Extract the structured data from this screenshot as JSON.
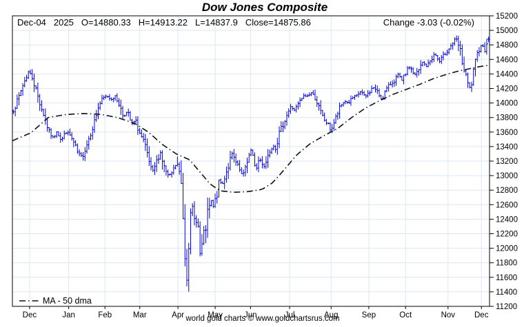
{
  "title": "Dow Jones Composite",
  "header": {
    "parts": [
      "Dec-04",
      "2025",
      "O=14880.33",
      "H=14913.22",
      "L=14837.9",
      "Close=14875.86"
    ],
    "change": "Change -3.03 (-0.02%)"
  },
  "legend": {
    "ma_label": "MA - 50 dma"
  },
  "footer": "world gold charts © www.goldchartsrus.com",
  "colors": {
    "title": "#0000ee",
    "bar": "#0000dd",
    "ma": "#111111",
    "grid": "#dbe7f4",
    "frame": "#000000"
  },
  "chart_data": {
    "type": "ohlc-bar",
    "title": "Dow Jones Composite",
    "y_axis": {
      "min": 11200,
      "max": 15200,
      "step": 200,
      "side": "right"
    },
    "x_axis": {
      "note": "month-start ticks, Dec 2024 through Dec 2025",
      "months": [
        {
          "label": "Dec",
          "t": 0.036
        },
        {
          "label": "Jan",
          "t": 0.118
        },
        {
          "label": "Feb",
          "t": 0.194
        },
        {
          "label": "Mar",
          "t": 0.267
        },
        {
          "label": "Apr",
          "t": 0.347
        },
        {
          "label": "May",
          "t": 0.425
        },
        {
          "label": "Jun",
          "t": 0.499
        },
        {
          "label": "Jul",
          "t": 0.581
        },
        {
          "label": "Aug",
          "t": 0.668
        },
        {
          "label": "Sep",
          "t": 0.747
        },
        {
          "label": "Oct",
          "t": 0.824
        },
        {
          "label": "Nov",
          "t": 0.913
        },
        {
          "label": "Dec",
          "t": 0.983
        }
      ]
    },
    "grid": {
      "horizontal": true,
      "vertical": true
    },
    "last_bar": {
      "date": "Dec-04 2025",
      "open": 14880.33,
      "high": 14913.22,
      "low": 14837.9,
      "close": 14875.86,
      "change": -3.03,
      "change_pct": -0.02
    },
    "price_keypoints": [
      [
        0.0,
        13900
      ],
      [
        0.01,
        14050
      ],
      [
        0.02,
        14250
      ],
      [
        0.032,
        14430
      ],
      [
        0.04,
        14350
      ],
      [
        0.049,
        14150
      ],
      [
        0.058,
        13950
      ],
      [
        0.066,
        13800
      ],
      [
        0.075,
        13600
      ],
      [
        0.084,
        13520
      ],
      [
        0.092,
        13620
      ],
      [
        0.101,
        13480
      ],
      [
        0.11,
        13600
      ],
      [
        0.118,
        13570
      ],
      [
        0.127,
        13450
      ],
      [
        0.136,
        13300
      ],
      [
        0.145,
        13260
      ],
      [
        0.153,
        13400
      ],
      [
        0.162,
        13580
      ],
      [
        0.171,
        13750
      ],
      [
        0.179,
        13950
      ],
      [
        0.188,
        14060
      ],
      [
        0.197,
        14100
      ],
      [
        0.205,
        14050
      ],
      [
        0.214,
        14090
      ],
      [
        0.223,
        13980
      ],
      [
        0.231,
        13820
      ],
      [
        0.24,
        13880
      ],
      [
        0.249,
        13700
      ],
      [
        0.257,
        13760
      ],
      [
        0.266,
        13580
      ],
      [
        0.275,
        13450
      ],
      [
        0.283,
        13250
      ],
      [
        0.292,
        13030
      ],
      [
        0.301,
        13180
      ],
      [
        0.309,
        13330
      ],
      [
        0.318,
        13100
      ],
      [
        0.327,
        12980
      ],
      [
        0.335,
        13050
      ],
      [
        0.344,
        13180
      ],
      [
        0.353,
        12900
      ],
      [
        0.358,
        12350
      ],
      [
        0.364,
        11500
      ],
      [
        0.37,
        12200
      ],
      [
        0.376,
        12600
      ],
      [
        0.382,
        12350
      ],
      [
        0.387,
        12450
      ],
      [
        0.393,
        11900
      ],
      [
        0.399,
        12100
      ],
      [
        0.405,
        12300
      ],
      [
        0.41,
        12500
      ],
      [
        0.416,
        12650
      ],
      [
        0.422,
        12550
      ],
      [
        0.428,
        12750
      ],
      [
        0.434,
        12950
      ],
      [
        0.439,
        12850
      ],
      [
        0.445,
        13000
      ],
      [
        0.451,
        13100
      ],
      [
        0.46,
        13300
      ],
      [
        0.468,
        13180
      ],
      [
        0.477,
        13060
      ],
      [
        0.483,
        12980
      ],
      [
        0.488,
        13120
      ],
      [
        0.494,
        13250
      ],
      [
        0.5,
        13340
      ],
      [
        0.506,
        13200
      ],
      [
        0.512,
        13100
      ],
      [
        0.517,
        13240
      ],
      [
        0.523,
        13180
      ],
      [
        0.529,
        13120
      ],
      [
        0.535,
        13270
      ],
      [
        0.54,
        13350
      ],
      [
        0.546,
        13420
      ],
      [
        0.552,
        13380
      ],
      [
        0.558,
        13550
      ],
      [
        0.567,
        13700
      ],
      [
        0.575,
        13830
      ],
      [
        0.584,
        13950
      ],
      [
        0.592,
        13900
      ],
      [
        0.601,
        14000
      ],
      [
        0.61,
        14090
      ],
      [
        0.619,
        14100
      ],
      [
        0.627,
        14140
      ],
      [
        0.636,
        14060
      ],
      [
        0.645,
        13900
      ],
      [
        0.653,
        13780
      ],
      [
        0.662,
        13700
      ],
      [
        0.668,
        13620
      ],
      [
        0.673,
        13700
      ],
      [
        0.679,
        13800
      ],
      [
        0.688,
        13950
      ],
      [
        0.697,
        14030
      ],
      [
        0.705,
        14000
      ],
      [
        0.714,
        14070
      ],
      [
        0.723,
        14100
      ],
      [
        0.731,
        14160
      ],
      [
        0.74,
        14080
      ],
      [
        0.749,
        14150
      ],
      [
        0.757,
        14220
      ],
      [
        0.766,
        14150
      ],
      [
        0.775,
        14050
      ],
      [
        0.783,
        14170
      ],
      [
        0.792,
        14250
      ],
      [
        0.801,
        14300
      ],
      [
        0.809,
        14390
      ],
      [
        0.818,
        14300
      ],
      [
        0.827,
        14440
      ],
      [
        0.835,
        14500
      ],
      [
        0.844,
        14380
      ],
      [
        0.853,
        14450
      ],
      [
        0.861,
        14560
      ],
      [
        0.87,
        14500
      ],
      [
        0.879,
        14600
      ],
      [
        0.887,
        14680
      ],
      [
        0.896,
        14560
      ],
      [
        0.905,
        14650
      ],
      [
        0.913,
        14720
      ],
      [
        0.922,
        14800
      ],
      [
        0.931,
        14890
      ],
      [
        0.939,
        14750
      ],
      [
        0.948,
        14450
      ],
      [
        0.957,
        14250
      ],
      [
        0.962,
        14190
      ],
      [
        0.968,
        14400
      ],
      [
        0.974,
        14600
      ],
      [
        0.98,
        14750
      ],
      [
        0.986,
        14820
      ],
      [
        0.991,
        14700
      ],
      [
        0.997,
        14876
      ]
    ],
    "ma_keypoints": [
      [
        0.0,
        13480
      ],
      [
        0.039,
        13590
      ],
      [
        0.075,
        13800
      ],
      [
        0.111,
        13840
      ],
      [
        0.147,
        13855
      ],
      [
        0.184,
        13845
      ],
      [
        0.22,
        13800
      ],
      [
        0.256,
        13720
      ],
      [
        0.285,
        13600
      ],
      [
        0.314,
        13430
      ],
      [
        0.343,
        13300
      ],
      [
        0.371,
        13220
      ],
      [
        0.393,
        13050
      ],
      [
        0.415,
        12880
      ],
      [
        0.436,
        12790
      ],
      [
        0.465,
        12770
      ],
      [
        0.494,
        12780
      ],
      [
        0.523,
        12810
      ],
      [
        0.545,
        12900
      ],
      [
        0.567,
        13060
      ],
      [
        0.595,
        13280
      ],
      [
        0.624,
        13440
      ],
      [
        0.653,
        13550
      ],
      [
        0.682,
        13650
      ],
      [
        0.711,
        13800
      ],
      [
        0.74,
        13930
      ],
      [
        0.769,
        14030
      ],
      [
        0.798,
        14120
      ],
      [
        0.827,
        14190
      ],
      [
        0.855,
        14260
      ],
      [
        0.884,
        14340
      ],
      [
        0.913,
        14400
      ],
      [
        0.935,
        14440
      ],
      [
        0.957,
        14470
      ],
      [
        0.978,
        14500
      ],
      [
        1.0,
        14520
      ]
    ],
    "render": {
      "bar_count": 253,
      "base_vol": 38,
      "crash_extra": 70,
      "seed": 7
    }
  }
}
